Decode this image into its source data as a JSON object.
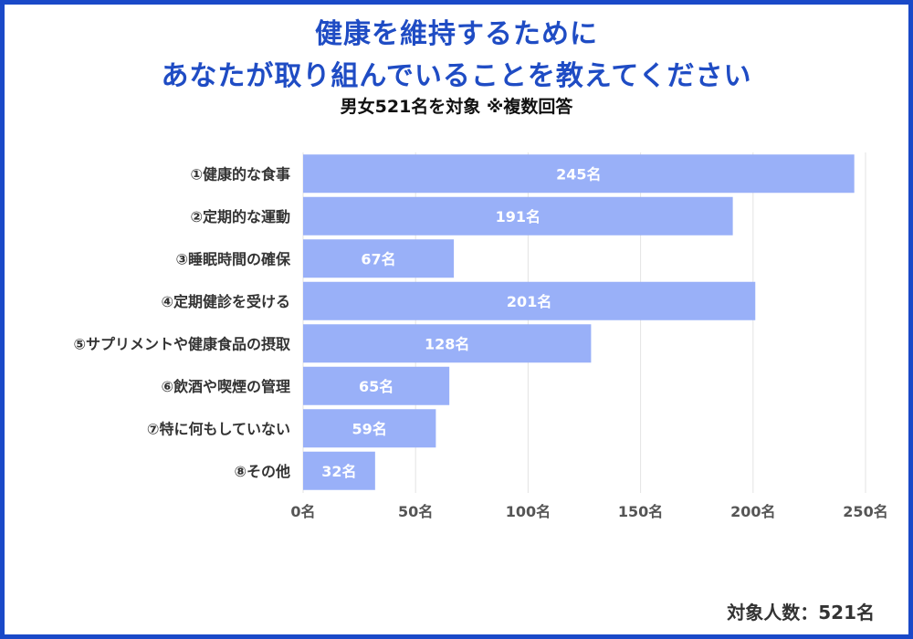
{
  "title_line1": "健康を維持するために",
  "title_line2": "あなたが取り組んでいることを教えてください",
  "subtitle": "男女521名を対象 ※複数回答",
  "footnote": "対象人数：521名",
  "colors": {
    "border": "#1a49c8",
    "title": "#1f4cc4",
    "bar": "#99b0f8"
  },
  "chart_data": {
    "type": "bar",
    "orientation": "horizontal",
    "categories": [
      "①健康的な食事",
      "②定期的な運動",
      "③睡眠時間の確保",
      "④定期健診を受ける",
      "⑤サプリメントや健康食品の摂取",
      "⑥飲酒や喫煙の管理",
      "⑦特に何もしていない",
      "⑧その他"
    ],
    "values": [
      245,
      191,
      67,
      201,
      128,
      65,
      59,
      32
    ],
    "data_labels": [
      "245名",
      "191名",
      "67名",
      "201名",
      "128名",
      "65名",
      "59名",
      "32名"
    ],
    "xlim": [
      0,
      250
    ],
    "x_ticks": [
      0,
      50,
      100,
      150,
      200,
      250
    ],
    "x_tick_labels": [
      "0名",
      "50名",
      "100名",
      "150名",
      "200名",
      "250名"
    ],
    "title": "健康を維持するために あなたが取り組んでいることを教えてください",
    "xlabel": "",
    "ylabel": "",
    "grid": true
  }
}
